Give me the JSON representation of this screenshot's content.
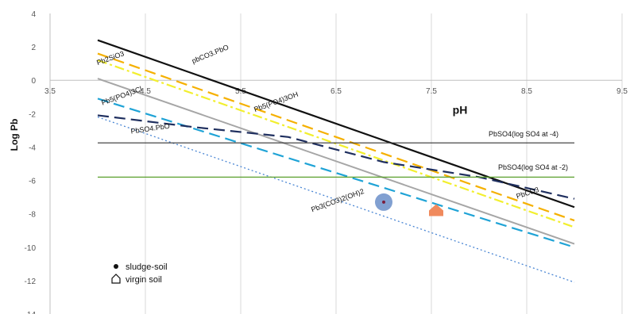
{
  "chart_data": {
    "type": "line",
    "title": "",
    "xlabel": "pH",
    "ylabel": "Log Pb",
    "xlim": [
      3.5,
      9.5
    ],
    "ylim": [
      -14,
      4
    ],
    "x_ticks": [
      3.5,
      4.5,
      5.5,
      6.5,
      7.5,
      8.5,
      9.5
    ],
    "x_tick_labels": [
      "3.5",
      "4.5",
      "5.5",
      "6.5",
      "7.5",
      "8.5",
      "9.5"
    ],
    "y_ticks": [
      4,
      2,
      0,
      -2,
      -4,
      -6,
      -8,
      -10,
      -12,
      -14
    ],
    "y_tick_labels": [
      "4",
      "2",
      "0",
      "-2",
      "-4",
      "-6",
      "-8",
      "-10",
      "-12",
      "-14"
    ],
    "grid": "vertical",
    "series": [
      {
        "name": "PbCO3.PbO",
        "color": "#111111",
        "style": "solid",
        "x": [
          4,
          9
        ],
        "y": [
          2.4,
          -7.6
        ]
      },
      {
        "name": "Pb2SiO3",
        "color": "#f5b000",
        "style": "dash",
        "x": [
          4,
          9
        ],
        "y": [
          1.6,
          -8.4
        ]
      },
      {
        "name": "",
        "color": "#f2ef2e",
        "style": "dashdot",
        "x": [
          4,
          9
        ],
        "y": [
          1.2,
          -8.8
        ]
      },
      {
        "name": "Pb5(PO4)3OH",
        "color": "#a6a6a6",
        "style": "solid",
        "x": [
          4,
          9
        ],
        "y": [
          0.1,
          -9.8
        ]
      },
      {
        "name": "Pb5(PO4)3Cl",
        "color": "#1fa3d6",
        "style": "dash",
        "x": [
          4,
          9
        ],
        "y": [
          -1.1,
          -10.0
        ]
      },
      {
        "name": "PbSO4.PbO",
        "color": "#1f2f5f",
        "style": "dash",
        "x": [
          4,
          5,
          6,
          7,
          8,
          9
        ],
        "y": [
          -2.1,
          -2.8,
          -3.4,
          -4.9,
          -5.8,
          -7.1
        ]
      },
      {
        "name": "Pb3(CO3)2(OH)2",
        "color": "#4a86d4",
        "style": "dot",
        "x": [
          4,
          9
        ],
        "y": [
          -2.2,
          -12.1
        ]
      },
      {
        "name": "PbSO4(log SO4 at -4)",
        "color": "#333333",
        "style": "solid",
        "x": [
          4,
          9
        ],
        "y": [
          -3.75,
          -3.75
        ]
      },
      {
        "name": "PbSO4(log SO4 at -2)",
        "color": "#5aa02c",
        "style": "solid",
        "x": [
          4,
          9
        ],
        "y": [
          -5.8,
          -5.8
        ]
      }
    ],
    "series_labels": [
      {
        "text": "pbCO3.PbO",
        "x": 5.0,
        "y": 1.0,
        "angle": -22
      },
      {
        "text": "Pb2SiO3",
        "x": 4.0,
        "y": 0.9,
        "angle": -20
      },
      {
        "text": "Pb5(PO4)3OH",
        "x": 5.65,
        "y": -1.9,
        "angle": -20
      },
      {
        "text": "Pb5(PO4)3Cl",
        "x": 4.05,
        "y": -1.5,
        "angle": -20
      },
      {
        "text": "PbSO4.PbO",
        "x": 4.35,
        "y": -3.2,
        "angle": -8
      },
      {
        "text": "PbSO4(log SO4 at -4)",
        "x": 8.1,
        "y": -3.35,
        "angle": 0
      },
      {
        "text": "PbSO4(log SO4 at -2)",
        "x": 8.2,
        "y": -5.35,
        "angle": 0
      },
      {
        "text": "PbCO3",
        "x": 8.4,
        "y": -7.1,
        "angle": -18
      },
      {
        "text": "Pb3(CO3)2(OH)2",
        "x": 6.25,
        "y": -7.9,
        "angle": -20
      }
    ],
    "points": [
      {
        "name": "sludge-soil",
        "x": 7.0,
        "y": -7.3,
        "color": "#6b8fc9",
        "marker": "circle"
      },
      {
        "name": "virgin soil",
        "x": 7.55,
        "y": -7.85,
        "color": "#f08a5d",
        "marker": "house"
      }
    ],
    "legend": {
      "placement": "bottom-left",
      "entries": [
        {
          "label": "sludge-soil",
          "marker": "dot"
        },
        {
          "label": "virgin soil",
          "marker": "house"
        }
      ]
    },
    "annotations": [
      {
        "text": "pH",
        "x": 7.8,
        "y": -2.0
      }
    ]
  }
}
